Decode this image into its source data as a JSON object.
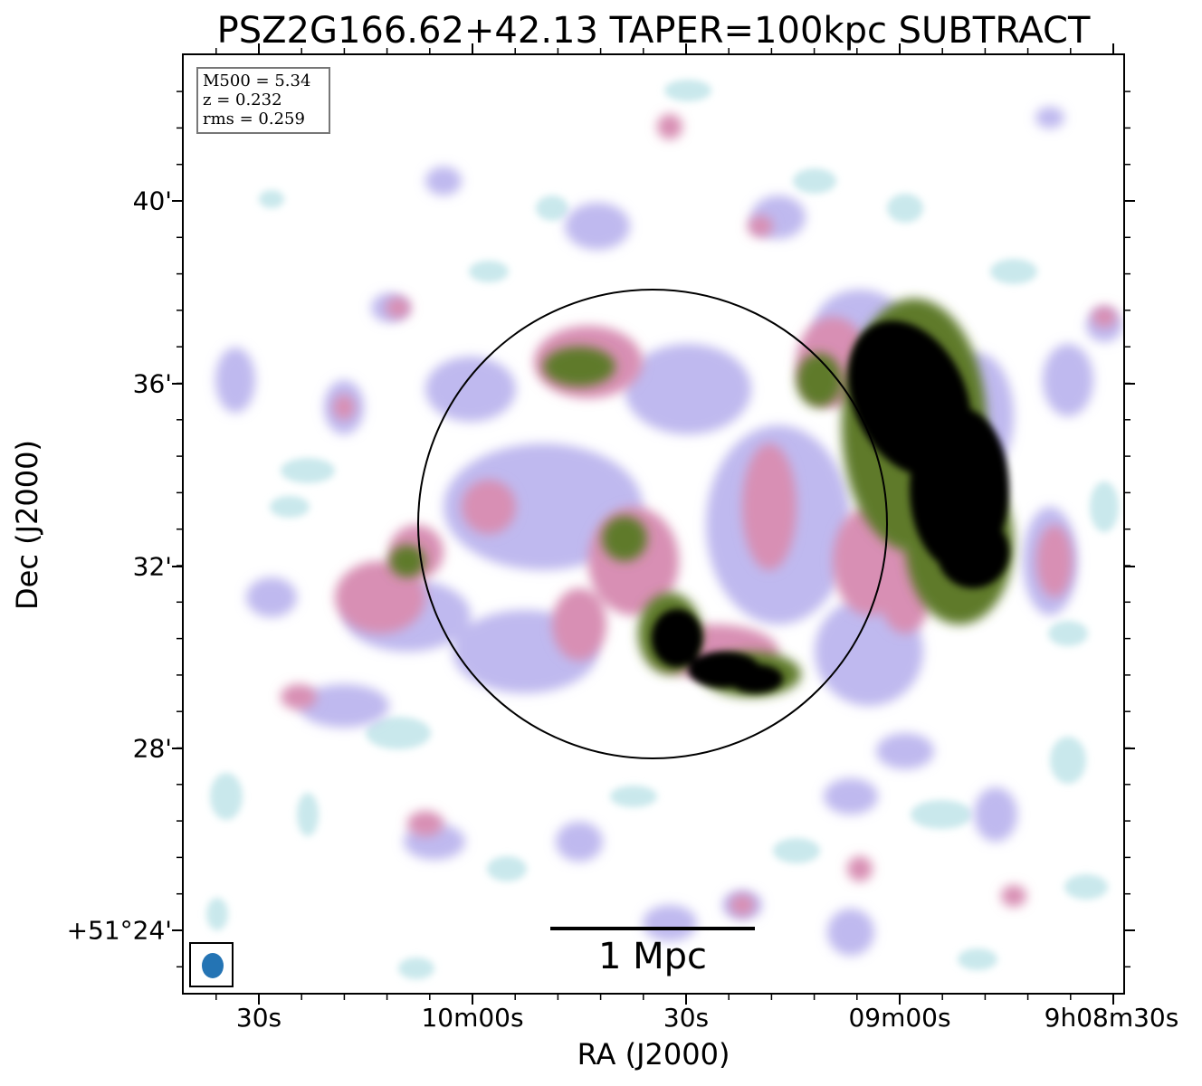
{
  "title": "PSZ2G166.62+42.13 TAPER=100kpc SUBTRACT",
  "axes": {
    "xlabel": "RA (J2000)",
    "ylabel": "Dec (J2000)",
    "yticks": [
      "40'",
      "36'",
      "32'",
      "28'",
      "+51°24'"
    ],
    "xticks": [
      "30s",
      "10m00s",
      "30s",
      "09m00s",
      "9h08m30s"
    ]
  },
  "info": {
    "mass": "M500 = 5.34",
    "redshift": "z = 0.232",
    "rms": "rms = 0.259"
  },
  "scalebar": {
    "label": "1 Mpc"
  },
  "colors": {
    "faint_emission": "#c9e8ec",
    "low_emission": "#bfb9ef",
    "mid_emission": "#d88fb4",
    "high_emission": "#5e7a2a",
    "peak_emission": "#000000",
    "beam": "#2474b4"
  }
}
